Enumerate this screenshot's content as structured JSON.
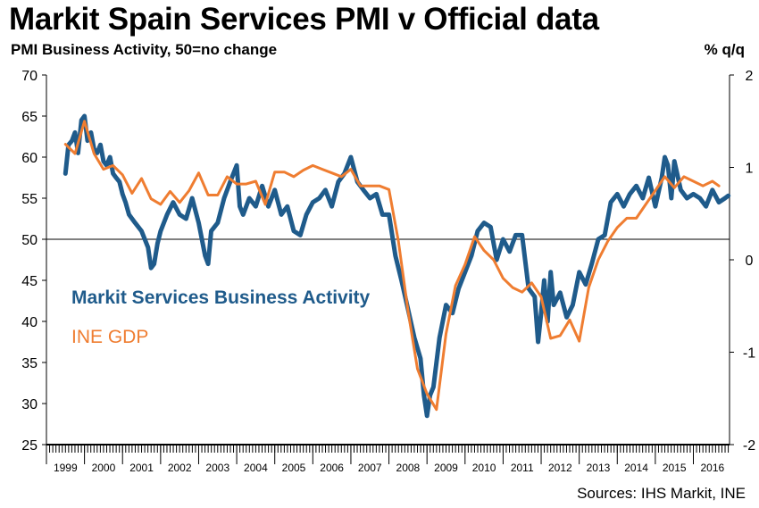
{
  "chart_data": {
    "type": "line",
    "title": "Markit Spain Services PMI v Official data",
    "subtitle": "PMI Business Activity, 50=no change",
    "right_axis_label": "% q/q",
    "source": "Sources: IHS Markit, INE",
    "left_axis": {
      "ylim": [
        25,
        70
      ],
      "ticks": [
        25,
        30,
        35,
        40,
        45,
        50,
        55,
        60,
        65,
        70
      ],
      "reference_line": 50
    },
    "right_axis": {
      "ylim": [
        -2,
        2
      ],
      "ticks": [
        "-2",
        "-1",
        "0",
        "1",
        "2"
      ]
    },
    "x_range": [
      1999.0,
      2016.95
    ],
    "years": [
      "1999",
      "2000",
      "2001",
      "2002",
      "2003",
      "2004",
      "2005",
      "2006",
      "2007",
      "2008",
      "2009",
      "2010",
      "2011",
      "2012",
      "2013",
      "2014",
      "2015",
      "2016"
    ],
    "series": [
      {
        "name": "Markit Services Business Activity",
        "axis": "left",
        "color": "#1f5b8b",
        "points": [
          [
            1999.5,
            58.0
          ],
          [
            1999.58,
            61.5
          ],
          [
            1999.67,
            62.0
          ],
          [
            1999.75,
            63.0
          ],
          [
            1999.83,
            60.5
          ],
          [
            1999.92,
            64.5
          ],
          [
            2000.0,
            65.0
          ],
          [
            2000.08,
            62.0
          ],
          [
            2000.17,
            63.0
          ],
          [
            2000.25,
            61.0
          ],
          [
            2000.33,
            60.5
          ],
          [
            2000.42,
            61.5
          ],
          [
            2000.5,
            59.5
          ],
          [
            2000.58,
            59.0
          ],
          [
            2000.67,
            60.0
          ],
          [
            2000.75,
            58.0
          ],
          [
            2000.83,
            57.5
          ],
          [
            2000.92,
            57.0
          ],
          [
            2001.0,
            55.5
          ],
          [
            2001.08,
            54.5
          ],
          [
            2001.17,
            53.0
          ],
          [
            2001.33,
            52.0
          ],
          [
            2001.5,
            51.0
          ],
          [
            2001.67,
            49.0
          ],
          [
            2001.75,
            46.5
          ],
          [
            2001.83,
            47.0
          ],
          [
            2001.92,
            49.5
          ],
          [
            2002.0,
            51.0
          ],
          [
            2002.17,
            53.0
          ],
          [
            2002.33,
            54.5
          ],
          [
            2002.5,
            53.0
          ],
          [
            2002.67,
            52.5
          ],
          [
            2002.83,
            55.0
          ],
          [
            2003.0,
            52.0
          ],
          [
            2003.17,
            48.0
          ],
          [
            2003.25,
            47.0
          ],
          [
            2003.33,
            51.0
          ],
          [
            2003.5,
            52.0
          ],
          [
            2003.67,
            55.0
          ],
          [
            2003.83,
            57.0
          ],
          [
            2004.0,
            59.0
          ],
          [
            2004.08,
            54.0
          ],
          [
            2004.17,
            53.0
          ],
          [
            2004.33,
            55.0
          ],
          [
            2004.5,
            54.0
          ],
          [
            2004.67,
            56.5
          ],
          [
            2004.83,
            54.0
          ],
          [
            2005.0,
            56.0
          ],
          [
            2005.17,
            53.0
          ],
          [
            2005.33,
            54.0
          ],
          [
            2005.5,
            51.0
          ],
          [
            2005.67,
            50.5
          ],
          [
            2005.83,
            53.0
          ],
          [
            2006.0,
            54.5
          ],
          [
            2006.17,
            55.0
          ],
          [
            2006.33,
            56.0
          ],
          [
            2006.5,
            54.0
          ],
          [
            2006.67,
            57.0
          ],
          [
            2006.83,
            58.0
          ],
          [
            2007.0,
            60.0
          ],
          [
            2007.17,
            57.0
          ],
          [
            2007.33,
            56.0
          ],
          [
            2007.5,
            55.0
          ],
          [
            2007.67,
            55.5
          ],
          [
            2007.83,
            53.0
          ],
          [
            2008.0,
            53.0
          ],
          [
            2008.17,
            48.0
          ],
          [
            2008.33,
            45.0
          ],
          [
            2008.5,
            41.5
          ],
          [
            2008.67,
            38.0
          ],
          [
            2008.83,
            35.5
          ],
          [
            2008.92,
            31.0
          ],
          [
            2009.0,
            28.5
          ],
          [
            2009.08,
            31.0
          ],
          [
            2009.17,
            32.0
          ],
          [
            2009.33,
            38.0
          ],
          [
            2009.5,
            42.0
          ],
          [
            2009.67,
            41.0
          ],
          [
            2009.83,
            44.0
          ],
          [
            2010.0,
            46.0
          ],
          [
            2010.17,
            48.0
          ],
          [
            2010.33,
            51.0
          ],
          [
            2010.5,
            52.0
          ],
          [
            2010.67,
            51.5
          ],
          [
            2010.83,
            47.5
          ],
          [
            2011.0,
            50.0
          ],
          [
            2011.17,
            48.5
          ],
          [
            2011.33,
            50.5
          ],
          [
            2011.5,
            50.5
          ],
          [
            2011.67,
            44.0
          ],
          [
            2011.83,
            43.0
          ],
          [
            2011.92,
            37.5
          ],
          [
            2012.0,
            41.0
          ],
          [
            2012.08,
            45.0
          ],
          [
            2012.17,
            40.0
          ],
          [
            2012.25,
            46.0
          ],
          [
            2012.33,
            42.0
          ],
          [
            2012.5,
            43.5
          ],
          [
            2012.67,
            40.5
          ],
          [
            2012.83,
            42.0
          ],
          [
            2013.0,
            46.0
          ],
          [
            2013.17,
            44.5
          ],
          [
            2013.33,
            47.0
          ],
          [
            2013.5,
            50.0
          ],
          [
            2013.67,
            50.5
          ],
          [
            2013.83,
            54.5
          ],
          [
            2014.0,
            55.5
          ],
          [
            2014.17,
            54.0
          ],
          [
            2014.33,
            55.5
          ],
          [
            2014.5,
            56.5
          ],
          [
            2014.67,
            55.0
          ],
          [
            2014.83,
            57.5
          ],
          [
            2015.0,
            54.0
          ],
          [
            2015.17,
            57.5
          ],
          [
            2015.25,
            60.0
          ],
          [
            2015.33,
            59.0
          ],
          [
            2015.42,
            55.0
          ],
          [
            2015.5,
            59.5
          ],
          [
            2015.67,
            56.0
          ],
          [
            2015.83,
            55.0
          ],
          [
            2016.0,
            55.5
          ],
          [
            2016.17,
            55.0
          ],
          [
            2016.33,
            54.0
          ],
          [
            2016.5,
            56.0
          ],
          [
            2016.67,
            54.5
          ],
          [
            2016.83,
            55.0
          ],
          [
            2016.92,
            55.3
          ]
        ]
      },
      {
        "name": "INE GDP",
        "axis": "right",
        "color": "#ef7d31",
        "points": [
          [
            1999.5,
            1.25
          ],
          [
            1999.75,
            1.15
          ],
          [
            2000.0,
            1.5
          ],
          [
            2000.25,
            1.15
          ],
          [
            2000.5,
            0.98
          ],
          [
            2000.75,
            1.02
          ],
          [
            2001.0,
            0.92
          ],
          [
            2001.25,
            0.72
          ],
          [
            2001.5,
            0.88
          ],
          [
            2001.75,
            0.66
          ],
          [
            2002.0,
            0.6
          ],
          [
            2002.25,
            0.74
          ],
          [
            2002.5,
            0.62
          ],
          [
            2002.75,
            0.75
          ],
          [
            2003.0,
            0.94
          ],
          [
            2003.25,
            0.7
          ],
          [
            2003.5,
            0.7
          ],
          [
            2003.75,
            0.9
          ],
          [
            2004.0,
            0.82
          ],
          [
            2004.25,
            0.82
          ],
          [
            2004.5,
            0.85
          ],
          [
            2004.75,
            0.6
          ],
          [
            2005.0,
            0.95
          ],
          [
            2005.25,
            0.95
          ],
          [
            2005.5,
            0.9
          ],
          [
            2005.75,
            0.97
          ],
          [
            2006.0,
            1.02
          ],
          [
            2006.25,
            0.98
          ],
          [
            2006.5,
            0.94
          ],
          [
            2006.75,
            0.9
          ],
          [
            2007.0,
            0.98
          ],
          [
            2007.25,
            0.8
          ],
          [
            2007.5,
            0.8
          ],
          [
            2007.75,
            0.8
          ],
          [
            2008.0,
            0.76
          ],
          [
            2008.25,
            0.2
          ],
          [
            2008.5,
            -0.55
          ],
          [
            2008.75,
            -1.18
          ],
          [
            2009.0,
            -1.45
          ],
          [
            2009.25,
            -1.62
          ],
          [
            2009.5,
            -0.8
          ],
          [
            2009.75,
            -0.28
          ],
          [
            2010.0,
            -0.05
          ],
          [
            2010.25,
            0.25
          ],
          [
            2010.5,
            0.1
          ],
          [
            2010.75,
            0.0
          ],
          [
            2011.0,
            -0.2
          ],
          [
            2011.25,
            -0.3
          ],
          [
            2011.5,
            -0.35
          ],
          [
            2011.75,
            -0.25
          ],
          [
            2012.0,
            -0.4
          ],
          [
            2012.25,
            -0.85
          ],
          [
            2012.5,
            -0.82
          ],
          [
            2012.75,
            -0.65
          ],
          [
            2013.0,
            -0.88
          ],
          [
            2013.25,
            -0.3
          ],
          [
            2013.5,
            0.0
          ],
          [
            2013.75,
            0.2
          ],
          [
            2014.0,
            0.35
          ],
          [
            2014.25,
            0.45
          ],
          [
            2014.5,
            0.45
          ],
          [
            2014.75,
            0.6
          ],
          [
            2015.0,
            0.75
          ],
          [
            2015.25,
            0.9
          ],
          [
            2015.5,
            0.78
          ],
          [
            2015.75,
            0.9
          ],
          [
            2016.0,
            0.85
          ],
          [
            2016.25,
            0.8
          ],
          [
            2016.5,
            0.85
          ],
          [
            2016.67,
            0.8
          ]
        ]
      }
    ]
  },
  "legend": {
    "pmi": "Markit Services Business Activity",
    "gdp": "INE GDP"
  }
}
